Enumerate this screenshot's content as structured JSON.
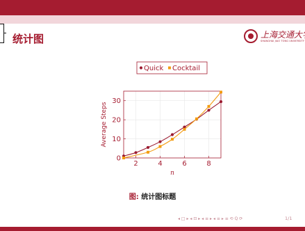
{
  "frame": {
    "title": "统计图",
    "logo_text": "上海交通大学",
    "logo_sub": "SHANGHAI JIAO TONG UNIVERSITY",
    "caption_label": "图:",
    "caption_text": "统计图标题",
    "page_number": "1/1",
    "nav_symbols": "◂ □ ▸  ◂ ⊡ ▸  ◂ ≡ ▸  ◂ ≡ ▸   ≡   ⟲ Q ⟳"
  },
  "colors": {
    "brand": "#a51c30",
    "quick": "#9b1b30",
    "cocktail": "#f39c12",
    "grid": "#e6e6e6"
  },
  "chart_data": {
    "type": "line",
    "title": "",
    "xlabel": "n",
    "ylabel": "Average Steps",
    "xlim": [
      1,
      9
    ],
    "ylim": [
      0,
      35
    ],
    "xticks": [
      2,
      4,
      6,
      8
    ],
    "yticks": [
      0,
      10,
      20,
      30
    ],
    "grid": true,
    "legend_position": "top-center",
    "series": [
      {
        "name": "Quick",
        "color": "#9b1b30",
        "x": [
          1,
          2,
          3,
          4,
          5,
          6,
          7,
          8,
          9
        ],
        "y": [
          1,
          2.8,
          5.5,
          8.5,
          12.2,
          16.2,
          20.3,
          25,
          29.5
        ]
      },
      {
        "name": "Cocktail",
        "color": "#f39c12",
        "x": [
          1,
          3,
          4,
          5,
          6,
          7,
          8,
          9
        ],
        "y": [
          0,
          3,
          6,
          9.8,
          15,
          20.5,
          27,
          34.5
        ]
      }
    ]
  }
}
